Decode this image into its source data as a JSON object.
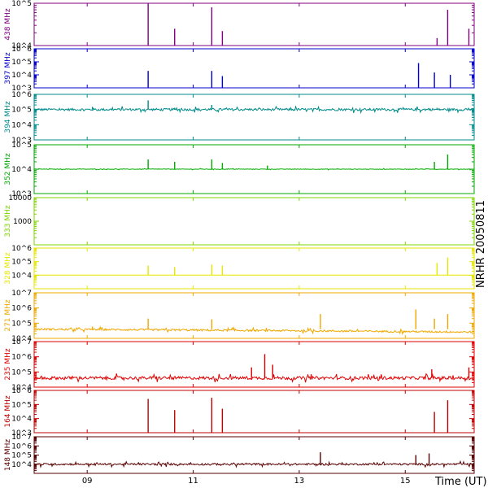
{
  "side_label": "NRHR 20050811",
  "chart_data": {
    "type": "line",
    "xlabel": "Time (UT)",
    "xlim": [
      8.0,
      16.3
    ],
    "x_ticks": [
      {
        "value": 9,
        "label": "09"
      },
      {
        "value": 11,
        "label": "11"
      },
      {
        "value": 13,
        "label": "13"
      },
      {
        "value": 15,
        "label": "15"
      }
    ],
    "panels": [
      {
        "name": "438 MHz",
        "color": "#800080",
        "ylim": [
          10000,
          100000
        ],
        "ytick_labels": [
          {
            "value": 100000,
            "label": "10^5"
          },
          {
            "value": 10000,
            "label": "10^4"
          }
        ],
        "baseline": 10000,
        "noise": 0,
        "spikes": [
          [
            10.15,
            100000
          ],
          [
            10.65,
            25000
          ],
          [
            11.35,
            80000
          ],
          [
            11.55,
            22000
          ],
          [
            15.6,
            15000
          ],
          [
            15.8,
            70000
          ],
          [
            16.2,
            25000
          ]
        ]
      },
      {
        "name": "397 MHz",
        "color": "#0000cc",
        "ylim": [
          1000,
          1000000
        ],
        "ytick_labels": [
          {
            "value": 1000000,
            "label": "10^6"
          },
          {
            "value": 100000,
            "label": "10^5"
          },
          {
            "value": 10000,
            "label": "10^4"
          },
          {
            "value": 1000,
            "label": "10^3"
          }
        ],
        "baseline": 1000,
        "noise": 0,
        "spikes": [
          [
            10.15,
            20000
          ],
          [
            11.35,
            20000
          ],
          [
            11.55,
            8000
          ],
          [
            15.25,
            80000
          ],
          [
            15.55,
            15000
          ],
          [
            15.85,
            10000
          ]
        ]
      },
      {
        "name": "394 MHz",
        "color": "#008b8b",
        "ylim": [
          1000,
          1000000
        ],
        "ytick_labels": [
          {
            "value": 1000000,
            "label": "10^6"
          },
          {
            "value": 100000,
            "label": "10^5"
          },
          {
            "value": 10000,
            "label": "10^4"
          },
          {
            "value": 1000,
            "label": "10^3"
          }
        ],
        "baseline": 100000,
        "noise": 0.15,
        "spikes": [
          [
            9.1,
            150000
          ],
          [
            10.15,
            400000
          ],
          [
            10.65,
            130000
          ],
          [
            11.35,
            200000
          ],
          [
            11.6,
            120000
          ],
          [
            15.6,
            130000
          ]
        ]
      },
      {
        "name": "352 MHz",
        "color": "#00aa00",
        "ylim": [
          1000,
          100000
        ],
        "ytick_labels": [
          {
            "value": 100000,
            "label": "10^5"
          },
          {
            "value": 10000,
            "label": "10^4"
          },
          {
            "value": 1000,
            "label": "10^3"
          }
        ],
        "baseline": 10000,
        "noise": 0.02,
        "spikes": [
          [
            10.15,
            25000
          ],
          [
            10.65,
            20000
          ],
          [
            11.35,
            25000
          ],
          [
            11.55,
            18000
          ],
          [
            12.4,
            14000
          ],
          [
            15.55,
            20000
          ],
          [
            15.8,
            40000
          ]
        ]
      },
      {
        "name": "333 MHz",
        "color": "#7fd400",
        "ylim": [
          100,
          10000
        ],
        "ytick_labels": [
          {
            "value": 10000,
            "label": "10000"
          },
          {
            "value": 1000,
            "label": "1000"
          }
        ],
        "baseline": null,
        "noise": 0,
        "spikes": []
      },
      {
        "name": "328 MHz",
        "color": "#e6e600",
        "ylim": [
          1000,
          1000000
        ],
        "ytick_labels": [
          {
            "value": 1000000,
            "label": "10^6"
          },
          {
            "value": 100000,
            "label": "10^5"
          },
          {
            "value": 10000,
            "label": "10^4"
          }
        ],
        "baseline": 10000,
        "noise": 0,
        "spikes": [
          [
            10.15,
            50000
          ],
          [
            10.65,
            40000
          ],
          [
            11.35,
            60000
          ],
          [
            11.55,
            50000
          ],
          [
            15.6,
            80000
          ],
          [
            15.8,
            200000
          ]
        ]
      },
      {
        "name": "271 MHz",
        "color": "#f0a800",
        "ylim": [
          10000,
          10000000
        ],
        "ytick_labels": [
          {
            "value": 10000000,
            "label": "10^7"
          },
          {
            "value": 1000000,
            "label": "10^6"
          },
          {
            "value": 100000,
            "label": "10^5"
          },
          {
            "value": 10000,
            "label": "10^4"
          }
        ],
        "baseline": 40000,
        "noise": 0.12,
        "spikes": [
          [
            9.1,
            60000
          ],
          [
            10.15,
            200000
          ],
          [
            11.35,
            180000
          ],
          [
            13.4,
            400000
          ],
          [
            15.2,
            800000
          ],
          [
            15.55,
            200000
          ],
          [
            15.8,
            400000
          ]
        ]
      },
      {
        "name": "235 MHz",
        "color": "#e00000",
        "ylim": [
          10000,
          10000000
        ],
        "ytick_labels": [
          {
            "value": 10000000,
            "label": "10^7"
          },
          {
            "value": 1000000,
            "label": "10^6"
          },
          {
            "value": 100000,
            "label": "10^5"
          },
          {
            "value": 10000,
            "label": "10^4"
          }
        ],
        "baseline": 40000,
        "noise": 0.2,
        "spikes": [
          [
            12.1,
            200000
          ],
          [
            12.35,
            1500000
          ],
          [
            12.5,
            300000
          ],
          [
            15.5,
            150000
          ],
          [
            16.2,
            200000
          ]
        ]
      },
      {
        "name": "164 MHz",
        "color": "#c00000",
        "ylim": [
          1000,
          1000000
        ],
        "ytick_labels": [
          {
            "value": 1000000,
            "label": "10^6"
          },
          {
            "value": 100000,
            "label": "10^5"
          },
          {
            "value": 10000,
            "label": "10^4"
          },
          {
            "value": 1000,
            "label": "10^3"
          }
        ],
        "baseline": 1000,
        "noise": 0,
        "spikes": [
          [
            10.15,
            250000
          ],
          [
            10.65,
            40000
          ],
          [
            11.35,
            300000
          ],
          [
            11.55,
            50000
          ],
          [
            15.55,
            30000
          ],
          [
            15.8,
            200000
          ]
        ]
      },
      {
        "name": "148 MHz",
        "color": "#5a0000",
        "ylim": [
          1000,
          10000000
        ],
        "ytick_labels": [
          {
            "value": 10000000,
            "label": "10^7"
          },
          {
            "value": 1000000,
            "label": "10^6"
          },
          {
            "value": 100000,
            "label": "10^5"
          },
          {
            "value": 10000,
            "label": "10^4"
          }
        ],
        "baseline": 10000,
        "noise": 0.2,
        "spikes": [
          [
            13.4,
            200000
          ],
          [
            15.2,
            100000
          ],
          [
            15.45,
            150000
          ]
        ]
      }
    ]
  }
}
